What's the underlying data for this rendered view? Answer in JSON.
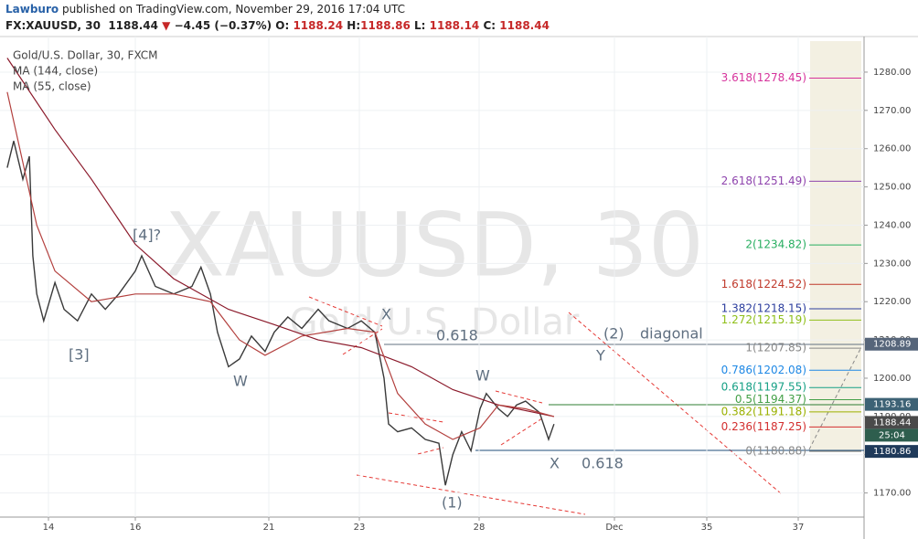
{
  "header": {
    "author": "Lawburo",
    "published": "published on TradingView.com, November 29, 2016 17:04 UTC",
    "symbol": "FX:XAUUSD, 30",
    "last": "1188.44",
    "arrow": "▼",
    "change": "−4.45 (−0.37%)",
    "o_label": "O:",
    "o": "1188.24",
    "h_label": "H:",
    "h": "1188.86",
    "l_label": "L:",
    "l": "1188.14",
    "c_label": "C:",
    "c": "1188.44"
  },
  "chart_data": {
    "type": "line",
    "watermark": "XAUUSD, 30",
    "watermark_sub": "Gold/U.S. Dollar",
    "x": [
      13.05,
      13.2,
      13.41,
      13.56,
      13.64,
      13.73,
      13.89,
      14.15,
      14.36,
      14.67,
      14.99,
      15.31,
      15.62,
      16.0,
      16.24,
      16.75,
      17.44,
      18.12,
      18.46,
      18.81,
      19.08,
      19.49,
      19.9,
      20.35,
      20.86,
      21.12,
      21.42,
      21.73,
      22.09,
      22.33,
      22.74,
      23.08,
      23.65,
      24.03,
      24.22,
      24.6,
      25.18,
      25.75,
      26.32,
      26.59,
      26.9,
      27.27,
      27.66,
      28.02,
      28.16,
      28.43,
      28.63,
      28.83,
      29.03,
      29.34,
      29.54,
      29.66
    ],
    "series": [
      {
        "name": "Gold/U.S. Dollar, 30, FXCM",
        "color": "#3a3a3a",
        "values": [
          1255,
          1262,
          1252,
          1258,
          1232,
          1222,
          1215,
          1225,
          1218,
          1215,
          1222,
          1218,
          1222,
          1228,
          1232,
          1224,
          1222,
          1224,
          1229,
          1222,
          1212,
          1203,
          1205,
          1211,
          1207,
          1212,
          1216,
          1213,
          1218,
          1215,
          1213,
          1215,
          1212,
          1200,
          1188,
          1186,
          1187,
          1184,
          1183,
          1172,
          1180,
          1186,
          1181,
          1192,
          1196,
          1192,
          1190,
          1193,
          1194,
          1191,
          1184,
          1188
        ]
      },
      {
        "name": "MA (144, close)",
        "color": "#8b1a2b",
        "values": [
          1283.7,
          null,
          null,
          null,
          null,
          null,
          null,
          1265,
          null,
          null,
          1252,
          null,
          null,
          1235,
          null,
          null,
          1226,
          null,
          null,
          null,
          null,
          1218,
          null,
          null,
          null,
          1214,
          null,
          null,
          1210,
          null,
          null,
          1208,
          null,
          null,
          null,
          null,
          1203,
          null,
          null,
          null,
          1197,
          null,
          null,
          null,
          null,
          1193,
          null,
          null,
          null,
          null,
          null,
          1190
        ]
      },
      {
        "name": "MA (55, close)",
        "color": "#b3403e",
        "values": [
          1274.8,
          null,
          null,
          null,
          null,
          1240,
          null,
          1228,
          null,
          null,
          1220,
          null,
          null,
          1222,
          null,
          null,
          1222,
          null,
          null,
          1220,
          null,
          null,
          1210,
          null,
          1206,
          null,
          null,
          1211,
          null,
          null,
          1213,
          null,
          1212,
          null,
          null,
          1196,
          null,
          1188,
          null,
          null,
          1184,
          null,
          null,
          1187,
          null,
          1193,
          null,
          null,
          1192,
          null,
          null,
          1190
        ]
      }
    ],
    "ylim": [
      1163.7,
      1289.3
    ],
    "yticks": [
      {
        "value": 1170,
        "label": "1170.00"
      },
      {
        "value": 1180,
        "label": "1180.00"
      },
      {
        "value": 1190,
        "label": "1190.00"
      },
      {
        "value": 1200,
        "label": "1200.00"
      },
      {
        "value": 1210,
        "label": "1210.00"
      },
      {
        "value": 1220,
        "label": "1220.00"
      },
      {
        "value": 1230,
        "label": "1230.00"
      },
      {
        "value": 1240,
        "label": "1240.00"
      },
      {
        "value": 1250,
        "label": "1250.00"
      },
      {
        "value": 1260,
        "label": "1260.00"
      },
      {
        "value": 1270,
        "label": "1270.00"
      },
      {
        "value": 1280,
        "label": "1280.00"
      }
    ],
    "xticks": [
      14,
      16,
      21,
      23,
      28,
      {
        "value": 31,
        "label": "Dec"
      },
      35,
      37
    ],
    "grid": true,
    "fib_levels": [
      {
        "value": 1278.45,
        "label": "3.618(1278.45)",
        "color": "#d6339c"
      },
      {
        "value": 1251.49,
        "label": "2.618(1251.49)",
        "color": "#8e44ad"
      },
      {
        "value": 1234.82,
        "label": "2(1234.82)",
        "color": "#27ae60"
      },
      {
        "value": 1224.52,
        "label": "1.618(1224.52)",
        "color": "#c0392b"
      },
      {
        "value": 1218.15,
        "label": "1.382(1218.15)",
        "color": "#2c3e9e"
      },
      {
        "value": 1215.19,
        "label": "1.272(1215.19)",
        "color": "#8fbf1a"
      },
      {
        "value": 1207.85,
        "label": "1(1207.85)",
        "color": "#888888"
      },
      {
        "value": 1202.08,
        "label": "0.786(1202.08)",
        "color": "#1e88e5"
      },
      {
        "value": 1197.55,
        "label": "0.618(1197.55)",
        "color": "#16a085"
      },
      {
        "value": 1194.37,
        "label": "0.5(1194.37)",
        "color": "#43a047"
      },
      {
        "value": 1191.18,
        "label": "0.382(1191.18)",
        "color": "#9ab000"
      },
      {
        "value": 1187.25,
        "label": "0.236(1187.25)",
        "color": "#d32f2f"
      },
      {
        "value": 1180.88,
        "label": "0(1180.88)",
        "color": "#888888"
      }
    ],
    "price_badges": [
      {
        "value": 1208.89,
        "label": "1208.89",
        "color": "#56657a"
      },
      {
        "value": 1193.16,
        "label": "1193.16",
        "color": "#3d6275"
      },
      {
        "value": 1188.44,
        "label": "1188.44",
        "color": "#4a4a4a"
      },
      {
        "value": 1180.86,
        "label": "1180.86",
        "color": "#1f3a5a"
      }
    ],
    "countdown": "25:04",
    "annotations": [
      "[4]?",
      "[3]",
      "W",
      "X",
      "(1)",
      "W",
      "X",
      "0.618",
      "0.618",
      "(2)",
      "diagonal",
      "Y"
    ]
  }
}
